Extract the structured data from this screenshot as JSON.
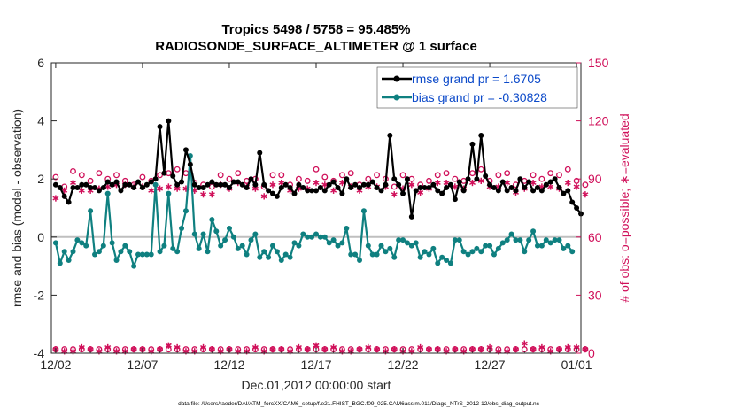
{
  "chart_data": {
    "type": "line",
    "title": "Tropics 5498 / 5758 = 95.485%",
    "subtitle": "RADIOSONDE_SURFACE_ALTIMETER @ 1 surface",
    "xlabel": "Dec.01,2012 00:00:00 start",
    "ylabel_left": "rmse and bias (model - observation)",
    "ylabel_right": "# of obs: o=possible; ∗=evaluated",
    "x_tick_labels": [
      "12/02",
      "12/07",
      "12/12",
      "12/17",
      "12/22",
      "12/27",
      "01/01"
    ],
    "x_tick_days": [
      1,
      6,
      11,
      16,
      21,
      26,
      31
    ],
    "xlim": [
      0.75,
      31.25
    ],
    "ylim_left": [
      -4,
      6
    ],
    "y_ticks_left": [
      "-4",
      "-2",
      "0",
      "2",
      "4",
      "6"
    ],
    "ylim_right": [
      0,
      150
    ],
    "y_ticks_right": [
      "0",
      "30",
      "60",
      "90",
      "120",
      "150"
    ],
    "footnote": "data file: /Users/raeder/DAI/ATM_forcXX/CAM6_setup/f.e21.FHIST_BGC.f09_025.CAM6assim.011/Diags_NTrS_2012-12/obs_diag_output.nc",
    "colors": {
      "rmse": "#000000",
      "bias": "#0f8080",
      "obs": "#d0105a",
      "legend_text": "#0b49c9",
      "zero_line": "#bfbfbf"
    },
    "series": [
      {
        "name": "rmse grand pr = 1.6705",
        "axis": "left",
        "t0": 1.0,
        "dt": 0.25,
        "values": [
          1.8,
          1.7,
          1.4,
          1.2,
          1.7,
          1.7,
          1.8,
          1.8,
          1.7,
          1.7,
          1.6,
          1.7,
          1.9,
          1.8,
          1.9,
          1.6,
          1.8,
          1.8,
          1.7,
          1.9,
          1.7,
          1.8,
          1.9,
          2.0,
          3.8,
          2.2,
          4.0,
          2.1,
          1.8,
          1.9,
          3.0,
          2.5,
          1.8,
          1.7,
          1.7,
          1.8,
          1.9,
          1.8,
          1.8,
          1.8,
          1.7,
          1.9,
          1.9,
          1.8,
          1.7,
          2.0,
          1.8,
          2.9,
          1.8,
          1.6,
          1.5,
          1.4,
          1.7,
          1.8,
          1.7,
          1.5,
          1.8,
          1.7,
          1.6,
          1.6,
          1.6,
          1.7,
          1.6,
          1.8,
          1.9,
          1.7,
          1.5,
          2.0,
          1.7,
          1.8,
          1.7,
          1.8,
          1.8,
          1.9,
          1.7,
          1.6,
          1.8,
          3.5,
          2.0,
          1.8,
          1.5,
          2.0,
          0.7,
          1.6,
          1.7,
          1.7,
          1.7,
          1.8,
          1.6,
          1.5,
          1.7,
          1.8,
          1.3,
          1.9,
          1.6,
          2.0,
          3.2,
          2.0,
          3.5,
          2.1,
          1.8,
          1.7,
          1.6,
          1.9,
          1.6,
          1.7,
          1.6,
          2.0,
          1.7,
          1.9,
          1.6,
          1.7,
          1.6,
          1.8,
          1.9,
          2.0,
          1.7,
          1.5,
          1.6,
          1.2,
          1.0,
          0.8
        ]
      },
      {
        "name": "bias grand pr = -0.30828",
        "axis": "left",
        "t0": 1.0,
        "dt": 0.25,
        "values": [
          -0.2,
          -0.9,
          -0.5,
          -0.8,
          -0.5,
          -0.1,
          -0.2,
          -0.3,
          0.9,
          -0.6,
          -0.5,
          -0.3,
          1.5,
          -0.2,
          -0.8,
          -0.5,
          -0.3,
          -0.5,
          -1.0,
          -0.6,
          -0.6,
          -0.6,
          -0.6,
          1.8,
          -0.5,
          -0.3,
          1.5,
          -0.4,
          -0.5,
          0.3,
          0.9,
          2.8,
          0.1,
          -0.4,
          0.1,
          -0.5,
          0.6,
          0.2,
          -0.3,
          -0.1,
          0.3,
          0.0,
          -0.4,
          -0.3,
          -0.6,
          -0.1,
          0.1,
          -0.7,
          -0.5,
          -0.7,
          -0.3,
          -0.5,
          -0.8,
          -0.6,
          -0.7,
          -0.2,
          -0.3,
          0.1,
          0.0,
          0.0,
          0.1,
          0.0,
          0.0,
          -0.2,
          -0.1,
          -0.3,
          -0.2,
          0.3,
          -0.6,
          -0.6,
          -0.8,
          0.9,
          -0.3,
          -0.6,
          -0.6,
          -0.3,
          -0.5,
          -0.4,
          -0.7,
          -0.1,
          -0.1,
          -0.2,
          -0.3,
          -0.2,
          -0.7,
          -0.5,
          -0.6,
          -0.4,
          -0.9,
          -0.7,
          -0.8,
          -0.9,
          -0.1,
          -0.1,
          -0.5,
          -0.6,
          -0.5,
          -0.4,
          -0.5,
          -0.3,
          -0.3,
          -0.6,
          -0.4,
          -0.2,
          -0.1,
          0.1,
          -0.1,
          -0.1,
          -0.5,
          -0.1,
          0.2,
          -0.3,
          -0.3,
          -0.1,
          -0.2,
          -0.1,
          -0.1,
          -0.4,
          -0.3,
          -0.5
        ]
      },
      {
        "name": "possible",
        "axis": "right",
        "marker": "o",
        "t0": 1.0,
        "dt": 0.5,
        "values": [
          91,
          86,
          94,
          92,
          89,
          93,
          90,
          92,
          89,
          87,
          91,
          89,
          92,
          93,
          95,
          93,
          88,
          87,
          86,
          92,
          90,
          93,
          89,
          90,
          86,
          92,
          92,
          87,
          90,
          89,
          95,
          91,
          89,
          92,
          93,
          87,
          90,
          92,
          90,
          86,
          92,
          90,
          87,
          89,
          92,
          93,
          90,
          89,
          93,
          95,
          89,
          92,
          93,
          87,
          89,
          92,
          90,
          93,
          92,
          95,
          89,
          87
        ]
      },
      {
        "name": "evaluated",
        "axis": "right",
        "marker": "*",
        "t0": 1.0,
        "dt": 0.5,
        "values": [
          80,
          84,
          88,
          84,
          84,
          85,
          86,
          87,
          87,
          86,
          86,
          84,
          85,
          86,
          85,
          85,
          84,
          82,
          82,
          87,
          85,
          88,
          86,
          85,
          81,
          87,
          88,
          84,
          85,
          85,
          88,
          87,
          84,
          88,
          86,
          84,
          86,
          86,
          86,
          82,
          85,
          87,
          83,
          85,
          88,
          88,
          86,
          85,
          88,
          89,
          86,
          86,
          88,
          83,
          85,
          88,
          86,
          86,
          85,
          88,
          86,
          82
        ]
      },
      {
        "name": "possible-bottom",
        "axis": "right",
        "marker": "o",
        "t0": 1.0,
        "dt": 0.5,
        "values": [
          2,
          2,
          2,
          2,
          2,
          2,
          2,
          2,
          2,
          2,
          2,
          2,
          2,
          2,
          2,
          2,
          2,
          2,
          2,
          2,
          2,
          2,
          2,
          2,
          2,
          2,
          2,
          2,
          2,
          2,
          2,
          2,
          2,
          2,
          2,
          2,
          2,
          2,
          2,
          2,
          2,
          2,
          2,
          2,
          2,
          2,
          2,
          2,
          2,
          2,
          2,
          2,
          2,
          2,
          2,
          2,
          2,
          2,
          2,
          2,
          2,
          2
        ]
      },
      {
        "name": "evaluated-bottom",
        "axis": "right",
        "marker": "*",
        "t0": 1.0,
        "dt": 0.5,
        "values": [
          2,
          1,
          1,
          3,
          2,
          1,
          3,
          1,
          1,
          2,
          2,
          1,
          2,
          4,
          3,
          1,
          1,
          3,
          2,
          1,
          2,
          1,
          1,
          3,
          1,
          2,
          2,
          1,
          3,
          2,
          4,
          2,
          3,
          1,
          1,
          2,
          3,
          2,
          1,
          2,
          1,
          1,
          3,
          2,
          2,
          1,
          2,
          1,
          2,
          2,
          3,
          1,
          1,
          2,
          5,
          2,
          3,
          1,
          2,
          3,
          3,
          2
        ]
      }
    ]
  }
}
